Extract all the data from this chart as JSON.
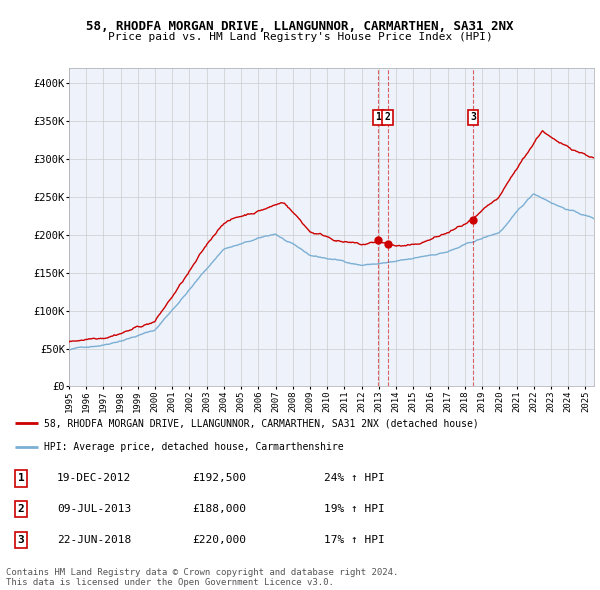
{
  "title": "58, RHODFA MORGAN DRIVE, LLANGUNNOR, CARMARTHEN, SA31 2NX",
  "subtitle": "Price paid vs. HM Land Registry's House Price Index (HPI)",
  "xlim_start": 1995.0,
  "xlim_end": 2025.5,
  "ylim": [
    0,
    420000
  ],
  "yticks": [
    0,
    50000,
    100000,
    150000,
    200000,
    250000,
    300000,
    350000,
    400000
  ],
  "ytick_labels": [
    "£0",
    "£50K",
    "£100K",
    "£150K",
    "£200K",
    "£250K",
    "£300K",
    "£350K",
    "£400K"
  ],
  "sale_dates": [
    2012.97,
    2013.52,
    2018.47
  ],
  "sale_prices": [
    192500,
    188000,
    220000
  ],
  "sale_labels": [
    "1",
    "2",
    "3"
  ],
  "red_line_color": "#cc0000",
  "blue_line_color": "#7bafd4",
  "background_color": "#eef2fb",
  "grid_color": "#cccccc",
  "legend_label_red": "58, RHODFA MORGAN DRIVE, LLANGUNNOR, CARMARTHEN, SA31 2NX (detached house)",
  "legend_label_blue": "HPI: Average price, detached house, Carmarthenshire",
  "table_data": [
    [
      "1",
      "19-DEC-2012",
      "£192,500",
      "24% ↑ HPI"
    ],
    [
      "2",
      "09-JUL-2013",
      "£188,000",
      "19% ↑ HPI"
    ],
    [
      "3",
      "22-JUN-2018",
      "£220,000",
      "17% ↑ HPI"
    ]
  ],
  "footer_text": "Contains HM Land Registry data © Crown copyright and database right 2024.\nThis data is licensed under the Open Government Licence v3.0."
}
